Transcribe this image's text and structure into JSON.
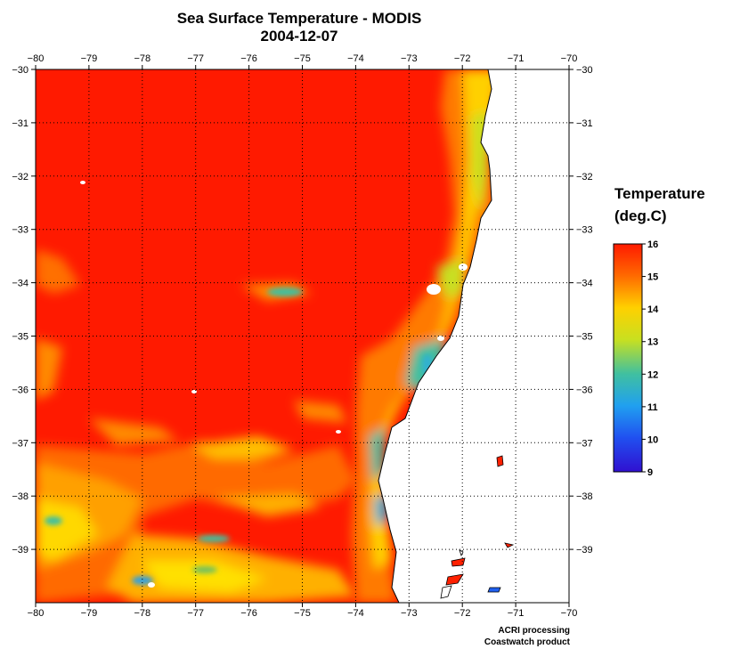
{
  "title": {
    "line1": "Sea Surface Temperature - MODIS",
    "line2": "2004-12-07"
  },
  "map": {
    "lon_range": [
      -80,
      -70
    ],
    "lat_range": [
      -40,
      -30
    ],
    "lon_ticks": [
      -80,
      -79,
      -78,
      -77,
      -76,
      -75,
      -74,
      -73,
      -72,
      -71,
      -70
    ],
    "lat_ticks": [
      -30,
      -31,
      -32,
      -33,
      -34,
      -35,
      -36,
      -37,
      -38,
      -39
    ],
    "gridlines": true,
    "gridline_style": "dotted"
  },
  "legend": {
    "title_line1": "Temperature",
    "title_line2": "(deg.C)",
    "min": 9,
    "max": 16,
    "ticks": [
      16,
      15,
      14,
      13,
      12,
      11,
      10,
      9
    ],
    "colors": {
      "16": "#ff1a00",
      "15": "#ff6a00",
      "14": "#ffd000",
      "13": "#c8e020",
      "12": "#40c0a0",
      "11": "#20a0f0",
      "10": "#2050f0",
      "9": "#3010d0"
    }
  },
  "credits": {
    "line1": "ACRI processing",
    "line2": "Coastwatch product"
  },
  "colors": {
    "sst_warm": "#ff1a00",
    "sst_orange": "#ff7a00",
    "sst_yellow": "#ffe000",
    "sst_green": "#70c060",
    "sst_cyan": "#30b0d0",
    "land": "#ffffff",
    "coastline": "#000000"
  }
}
